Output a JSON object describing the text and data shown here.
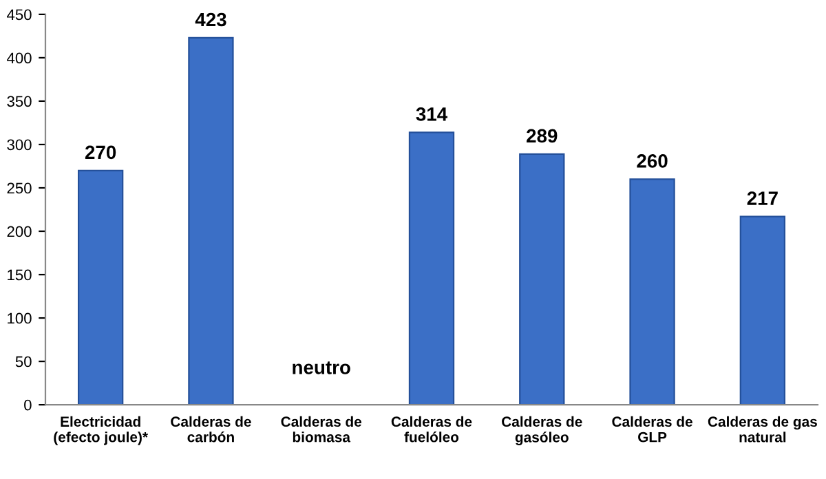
{
  "chart_data": {
    "type": "bar",
    "categories": [
      "Electricidad\n(efecto joule)*",
      "Calderas de\ncarbón",
      "Calderas de\nbiomasa",
      "Calderas de\nfuelóleo",
      "Calderas de\ngasóleo",
      "Calderas de\nGLP",
      "Calderas de gas\nnatural"
    ],
    "values": [
      270,
      423,
      null,
      314,
      289,
      260,
      217
    ],
    "value_labels": [
      "270",
      "423",
      "neutro",
      "314",
      "289",
      "260",
      "217"
    ],
    "color": "#3b6fc6",
    "ylim": [
      0,
      450
    ],
    "yticks": [
      0,
      50,
      100,
      150,
      200,
      250,
      300,
      350,
      400,
      450
    ],
    "grid": false,
    "legend": false
  }
}
